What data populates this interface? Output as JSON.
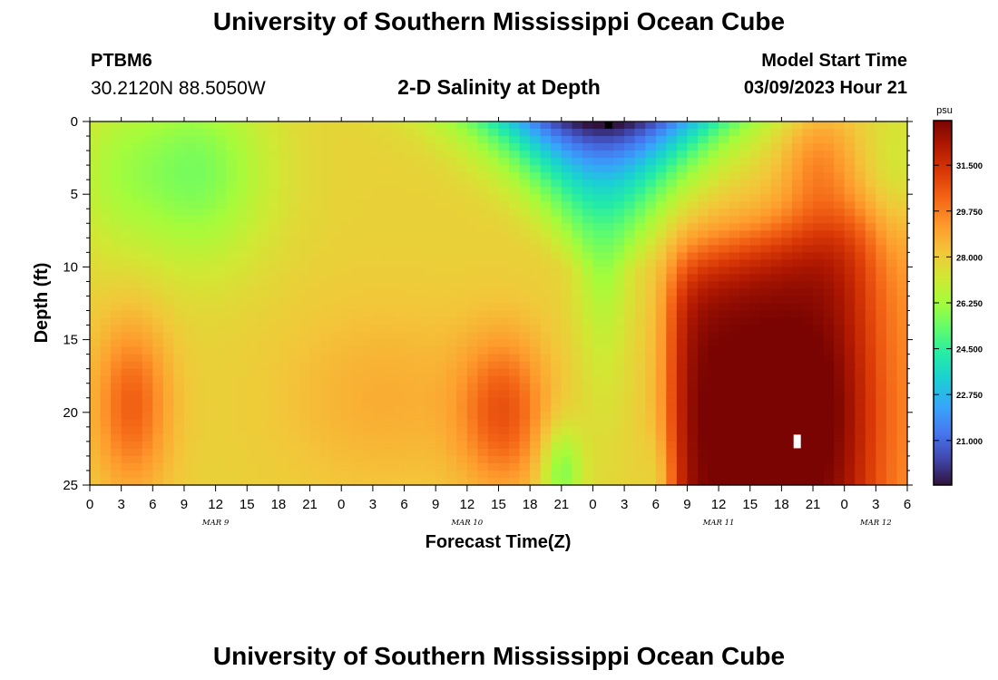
{
  "header": {
    "title": "University of Southern Mississippi Ocean Cube",
    "station": "PTBM6",
    "coordinates": "30.2120N  88.5050W",
    "subtitle": "2-D Salinity at Depth",
    "model_start_label": "Model Start Time",
    "model_start_value": "03/09/2023 Hour 21"
  },
  "footer": {
    "title": "University of Southern Mississippi Ocean Cube"
  },
  "chart_data": {
    "type": "heatmap",
    "title": "2-D Salinity at Depth",
    "xlabel": "Forecast Time(Z)",
    "ylabel": "Depth (ft)",
    "x_ticks": [
      "0",
      "3",
      "6",
      "9",
      "12",
      "15",
      "18",
      "21",
      "0",
      "3",
      "6",
      "9",
      "12",
      "15",
      "18",
      "21",
      "0",
      "3",
      "6",
      "9",
      "12",
      "15",
      "18",
      "21",
      "0",
      "3",
      "6"
    ],
    "x_hours_range": [
      0,
      78
    ],
    "date_labels": [
      {
        "text": "MAR 9",
        "hour": 12
      },
      {
        "text": "MAR 10",
        "hour": 36
      },
      {
        "text": "MAR 11",
        "hour": 60
      },
      {
        "text": "MAR 12",
        "hour": 75
      }
    ],
    "y_ticks": [
      "0",
      "5",
      "10",
      "15",
      "20",
      "25"
    ],
    "ylim": [
      0,
      25
    ],
    "colorbar": {
      "unit": "psu",
      "ticks": [
        "31.500",
        "29.750",
        "28.000",
        "26.250",
        "24.500",
        "22.750",
        "21.000"
      ],
      "tick_values": [
        31.5,
        29.75,
        28.0,
        26.25,
        24.5,
        22.75,
        21.0
      ],
      "range": [
        19.3,
        33.2
      ]
    },
    "features": [
      {
        "desc": "mid-water high salinity core",
        "hour": 4,
        "depth": 19.5,
        "salinity": 30.3
      },
      {
        "desc": "upper-water low salinity",
        "hour": 9,
        "depth": 3.5,
        "salinity": 25.6
      },
      {
        "desc": "mid-water high salinity core",
        "hour": 39,
        "depth": 20,
        "salinity": 30.4
      },
      {
        "desc": "surface fresh water lens",
        "hour": 49,
        "depth": 0.5,
        "salinity": 19.8
      },
      {
        "desc": "deep high salinity body",
        "hour": 66,
        "depth": 19,
        "salinity": 33.0
      }
    ],
    "markers": [
      {
        "label": "surface sensor marker",
        "hour": 49.5,
        "depth": 0.3,
        "color": "#000000"
      },
      {
        "label": "bottom sensor marker",
        "hour": 67.5,
        "depth": 22,
        "color": "#ffffff"
      }
    ],
    "colors": [
      "#30123b",
      "#4145ab",
      "#4675ed",
      "#39a2fc",
      "#1bcfd4",
      "#24eca6",
      "#61fc6c",
      "#a4fc3b",
      "#d1e834",
      "#f3c63a",
      "#fe9b2d",
      "#f36315",
      "#d93806",
      "#b11901",
      "#7a0402"
    ]
  }
}
